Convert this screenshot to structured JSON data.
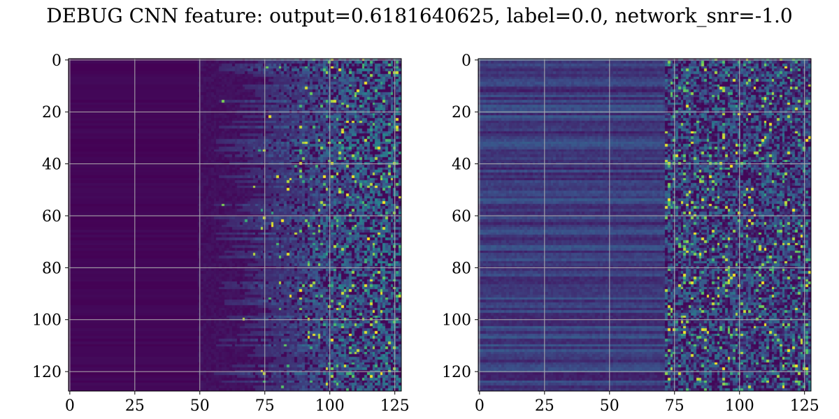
{
  "title": "DEBUG CNN feature: output=0.6181640625, label=0.0, network_snr=-1.0",
  "colormap": [
    "#440154",
    "#3b528b",
    "#21918c",
    "#5ec962",
    "#fde725"
  ],
  "grid_color": "#b0b0b0",
  "chart_data": [
    {
      "type": "heatmap",
      "title": "",
      "xlabel": "",
      "ylabel": "",
      "rows": 128,
      "cols": 128,
      "xlim": [
        0,
        127
      ],
      "ylim": [
        127,
        0
      ],
      "x_ticks": [
        0,
        25,
        50,
        75,
        100,
        125
      ],
      "y_ticks": [
        0,
        20,
        40,
        60,
        80,
        100,
        120
      ],
      "grid": true,
      "colormap_name": "viridis",
      "pattern": "dark (near-zero) values for columns 0-50, increasing sparse bright speckles toward columns 80-127"
    },
    {
      "type": "heatmap",
      "title": "",
      "xlabel": "",
      "ylabel": "",
      "rows": 128,
      "cols": 128,
      "xlim": [
        0,
        127
      ],
      "ylim": [
        127,
        0
      ],
      "x_ticks": [
        0,
        25,
        50,
        75,
        100,
        125
      ],
      "y_ticks": [
        0,
        20,
        40,
        60,
        80,
        100,
        120
      ],
      "grid": true,
      "colormap_name": "viridis",
      "pattern": "horizontal banding across all columns with low values, sparse bright speckles for columns 75-127"
    }
  ]
}
